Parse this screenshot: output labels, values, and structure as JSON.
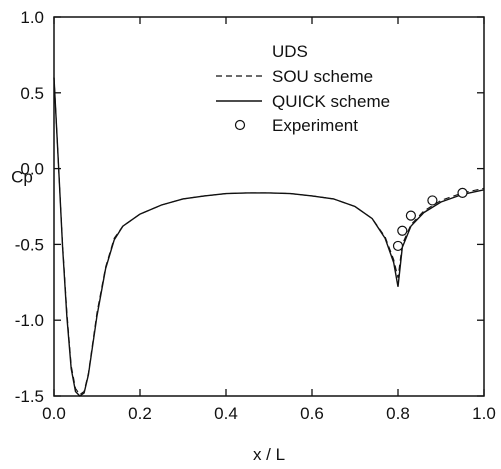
{
  "chart_data": {
    "type": "line",
    "title": "",
    "xlabel": "x / L",
    "ylabel": "Cp",
    "xlim": [
      0.0,
      1.0
    ],
    "ylim": [
      -1.5,
      1.0
    ],
    "x_ticks": [
      0.0,
      0.2,
      0.4,
      0.6,
      0.8,
      1.0
    ],
    "x_tick_labels": [
      "0.0",
      "0.2",
      "0.4",
      "0.6",
      "0.8",
      "1.0"
    ],
    "y_ticks": [
      -1.5,
      -1.0,
      -0.5,
      0.0,
      0.5,
      1.0
    ],
    "y_tick_labels": [
      "-1.5",
      "-1.0",
      "-0.5",
      "0.0",
      "0.5",
      "1.0"
    ],
    "grid": false,
    "legend_position": "top-right",
    "series": [
      {
        "name": "UDS",
        "style": "none",
        "x": [],
        "y": []
      },
      {
        "name": "SOU scheme",
        "style": "dashed",
        "x": [
          0.0,
          0.01,
          0.02,
          0.03,
          0.04,
          0.05,
          0.06,
          0.07,
          0.08,
          0.1,
          0.12,
          0.14,
          0.16,
          0.2,
          0.25,
          0.3,
          0.35,
          0.4,
          0.45,
          0.5,
          0.55,
          0.6,
          0.65,
          0.7,
          0.74,
          0.77,
          0.79,
          0.8,
          0.81,
          0.83,
          0.86,
          0.9,
          0.95,
          1.0
        ],
        "y": [
          0.6,
          0.05,
          -0.5,
          -0.95,
          -1.3,
          -1.45,
          -1.49,
          -1.47,
          -1.35,
          -0.95,
          -0.65,
          -0.46,
          -0.38,
          -0.3,
          -0.24,
          -0.2,
          -0.18,
          -0.165,
          -0.16,
          -0.16,
          -0.165,
          -0.18,
          -0.2,
          -0.25,
          -0.33,
          -0.45,
          -0.6,
          -0.72,
          -0.5,
          -0.37,
          -0.28,
          -0.21,
          -0.16,
          -0.13
        ]
      },
      {
        "name": "QUICK scheme",
        "style": "solid",
        "x": [
          0.0,
          0.01,
          0.02,
          0.03,
          0.04,
          0.05,
          0.06,
          0.07,
          0.08,
          0.1,
          0.12,
          0.14,
          0.16,
          0.2,
          0.25,
          0.3,
          0.35,
          0.4,
          0.45,
          0.5,
          0.55,
          0.6,
          0.65,
          0.7,
          0.74,
          0.77,
          0.79,
          0.8,
          0.81,
          0.83,
          0.86,
          0.9,
          0.95,
          1.0
        ],
        "y": [
          0.6,
          0.05,
          -0.52,
          -0.98,
          -1.32,
          -1.47,
          -1.5,
          -1.48,
          -1.36,
          -0.97,
          -0.66,
          -0.47,
          -0.38,
          -0.3,
          -0.24,
          -0.2,
          -0.18,
          -0.165,
          -0.16,
          -0.16,
          -0.165,
          -0.18,
          -0.2,
          -0.25,
          -0.33,
          -0.46,
          -0.62,
          -0.78,
          -0.52,
          -0.38,
          -0.29,
          -0.22,
          -0.17,
          -0.14
        ]
      },
      {
        "name": "Experiment",
        "style": "markers",
        "x": [
          0.8,
          0.81,
          0.83,
          0.88,
          0.95
        ],
        "y": [
          -0.51,
          -0.41,
          -0.31,
          -0.21,
          -0.16
        ]
      }
    ]
  }
}
